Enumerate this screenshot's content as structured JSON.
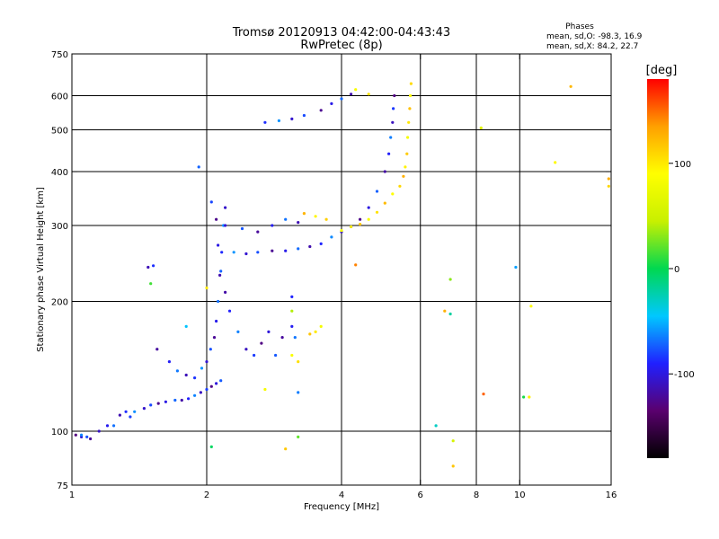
{
  "chart_data": {
    "type": "scatter",
    "title": "Tromsø 20120913 04:42:00-04:43:43",
    "subtitle": "RwPretec (8p)",
    "xlabel": "Frequency [MHz]",
    "ylabel": "Stationary phase Virtual Height [km]",
    "x_scale": "log",
    "y_scale": "log",
    "xlim": [
      1,
      16
    ],
    "ylim": [
      75,
      750
    ],
    "x_ticks": [
      1,
      2,
      4,
      6,
      8,
      10,
      16
    ],
    "x_tick_labels": [
      "1",
      "2",
      "4",
      "6",
      "8",
      "10",
      "16"
    ],
    "x_gridlines": [
      2,
      4,
      6,
      8,
      10
    ],
    "y_ticks": [
      75,
      100,
      200,
      300,
      400,
      500,
      600,
      750
    ],
    "y_tick_labels": [
      "75",
      "100",
      "200",
      "300",
      "400",
      "500",
      "600",
      "750"
    ],
    "y_gridlines": [
      100,
      200,
      300,
      400,
      500,
      600
    ],
    "grid": true,
    "stats": {
      "heading": "Phases",
      "line_o": "mean, sd,O: -98.3, 16.9",
      "line_x": "mean, sd,X:  84.2, 22.7"
    },
    "colorbar": {
      "label": "[deg]",
      "min": -180,
      "max": 180,
      "ticks": [
        100,
        0,
        -100
      ],
      "tick_labels": [
        "100",
        "0",
        "-100"
      ],
      "colors": [
        "#000000",
        "#5a006e",
        "#2020ff",
        "#00c8ff",
        "#00d850",
        "#c8f000",
        "#ffff00",
        "#ffa000",
        "#ff0000"
      ]
    },
    "series": [
      {
        "name": "",
        "points": [
          [
            1.02,
            98
          ],
          [
            1.05,
            97
          ],
          [
            1.08,
            97
          ],
          [
            1.1,
            96
          ],
          [
            1.2,
            103
          ],
          [
            1.24,
            103
          ],
          [
            1.28,
            109
          ],
          [
            1.32,
            111
          ],
          [
            1.38,
            111
          ],
          [
            1.45,
            113
          ],
          [
            1.5,
            115
          ],
          [
            1.56,
            116
          ],
          [
            1.62,
            117
          ],
          [
            1.7,
            118
          ],
          [
            1.76,
            118
          ],
          [
            1.82,
            119
          ],
          [
            1.88,
            121
          ],
          [
            1.94,
            123
          ],
          [
            2.0,
            125
          ],
          [
            2.05,
            127
          ],
          [
            2.1,
            129
          ],
          [
            2.15,
            131
          ],
          [
            1.55,
            155
          ],
          [
            1.65,
            145
          ],
          [
            1.72,
            138
          ],
          [
            1.8,
            135
          ],
          [
            1.88,
            133
          ],
          [
            1.95,
            140
          ],
          [
            2.0,
            145
          ],
          [
            2.04,
            155
          ],
          [
            2.08,
            165
          ],
          [
            2.1,
            180
          ],
          [
            2.12,
            200
          ],
          [
            2.14,
            230
          ],
          [
            2.16,
            260
          ],
          [
            2.18,
            300
          ],
          [
            2.2,
            330
          ],
          [
            2.05,
            340
          ],
          [
            2.1,
            310
          ],
          [
            2.12,
            270
          ],
          [
            2.15,
            235
          ],
          [
            2.2,
            210
          ],
          [
            2.25,
            190
          ],
          [
            2.35,
            170
          ],
          [
            2.45,
            155
          ],
          [
            2.55,
            150
          ],
          [
            2.65,
            160
          ],
          [
            2.75,
            170
          ],
          [
            2.85,
            150
          ],
          [
            2.95,
            165
          ],
          [
            3.1,
            175
          ],
          [
            3.15,
            165
          ],
          [
            1.48,
            240
          ],
          [
            1.52,
            242
          ],
          [
            2.3,
            260
          ],
          [
            2.45,
            258
          ],
          [
            2.6,
            260
          ],
          [
            2.8,
            262
          ],
          [
            3.0,
            262
          ],
          [
            3.2,
            265
          ],
          [
            3.4,
            268
          ],
          [
            3.6,
            272
          ],
          [
            3.8,
            282
          ],
          [
            4.0,
            290
          ],
          [
            4.2,
            298
          ],
          [
            4.4,
            310
          ],
          [
            4.6,
            330
          ],
          [
            4.8,
            360
          ],
          [
            5.0,
            400
          ],
          [
            5.1,
            440
          ],
          [
            5.15,
            480
          ],
          [
            5.2,
            520
          ],
          [
            5.22,
            560
          ],
          [
            5.25,
            600
          ],
          [
            2.2,
            300
          ],
          [
            2.4,
            295
          ],
          [
            2.6,
            290
          ],
          [
            2.8,
            300
          ],
          [
            3.0,
            310
          ],
          [
            3.2,
            305
          ],
          [
            2.7,
            520
          ],
          [
            2.9,
            525
          ],
          [
            3.1,
            530
          ],
          [
            3.3,
            540
          ],
          [
            3.6,
            555
          ],
          [
            3.8,
            575
          ],
          [
            4.0,
            590
          ],
          [
            4.2,
            605
          ],
          [
            3.1,
            205
          ],
          [
            1.05,
            98
          ],
          [
            1.15,
            100
          ],
          [
            1.35,
            108
          ]
        ]
      },
      {
        "name": "",
        "points": [
          [
            4.0,
            292
          ],
          [
            4.2,
            298
          ],
          [
            4.4,
            302
          ],
          [
            4.6,
            310
          ],
          [
            4.8,
            322
          ],
          [
            5.0,
            338
          ],
          [
            5.2,
            355
          ],
          [
            5.4,
            370
          ],
          [
            5.5,
            390
          ],
          [
            5.55,
            410
          ],
          [
            5.6,
            440
          ],
          [
            5.62,
            480
          ],
          [
            5.65,
            520
          ],
          [
            5.68,
            560
          ],
          [
            5.7,
            600
          ],
          [
            5.72,
            640
          ],
          [
            3.3,
            320
          ],
          [
            3.5,
            315
          ],
          [
            3.7,
            310
          ],
          [
            3.6,
            175
          ],
          [
            3.5,
            170
          ],
          [
            3.4,
            168
          ],
          [
            3.1,
            150
          ],
          [
            3.2,
            145
          ],
          [
            13.0,
            630
          ],
          [
            12.0,
            420
          ],
          [
            15.8,
            370
          ],
          [
            15.8,
            385
          ],
          [
            10.5,
            120
          ],
          [
            3.0,
            91
          ],
          [
            4.3,
            620
          ],
          [
            4.6,
            605
          ]
        ]
      },
      {
        "name": "",
        "points": [
          [
            1.92,
            410
          ],
          [
            1.5,
            220
          ],
          [
            2.0,
            215
          ],
          [
            1.8,
            175
          ],
          [
            3.1,
            190
          ],
          [
            6.8,
            190
          ],
          [
            7.0,
            187
          ],
          [
            8.2,
            505
          ],
          [
            8.3,
            122
          ],
          [
            10.2,
            120
          ],
          [
            10.6,
            195
          ],
          [
            9.8,
            240
          ],
          [
            7.0,
            225
          ],
          [
            7.1,
            83
          ],
          [
            6.5,
            103
          ],
          [
            7.1,
            95
          ],
          [
            4.3,
            243
          ],
          [
            2.05,
            92
          ],
          [
            2.7,
            125
          ],
          [
            3.2,
            123
          ],
          [
            3.2,
            97
          ]
        ]
      }
    ]
  }
}
